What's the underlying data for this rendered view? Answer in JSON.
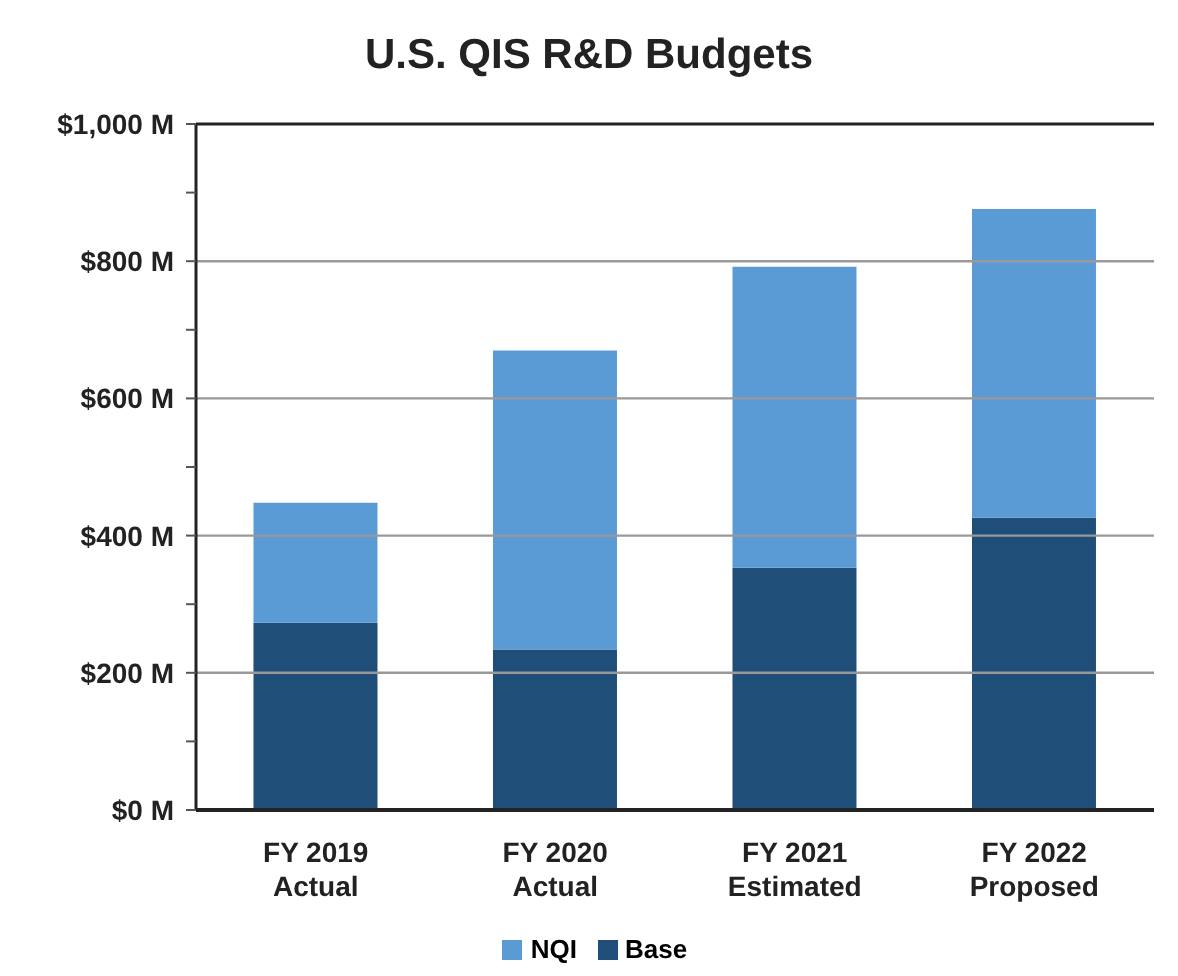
{
  "chart_data": {
    "type": "bar",
    "title": "U.S. QIS R&D Budgets",
    "categories": [
      "FY 2019\nActual",
      "FY 2020\nActual",
      "FY 2021\nEstimated",
      "FY 2022\nProposed"
    ],
    "stacked": true,
    "series": [
      {
        "name": "Base",
        "color": "#1f4e79",
        "values": [
          273,
          234,
          353,
          426
        ]
      },
      {
        "name": "NQI",
        "color": "#5b9bd5",
        "values": [
          175,
          436,
          439,
          450
        ]
      }
    ],
    "ylim": [
      0,
      1000
    ],
    "yticks": [
      {
        "value": 0,
        "label": "$0 M"
      },
      {
        "value": 100,
        "label": null
      },
      {
        "value": 200,
        "label": "$200 M"
      },
      {
        "value": 300,
        "label": null
      },
      {
        "value": 400,
        "label": "$400 M"
      },
      {
        "value": 500,
        "label": null
      },
      {
        "value": 600,
        "label": "$600 M"
      },
      {
        "value": 700,
        "label": null
      },
      {
        "value": 800,
        "label": "$800 M"
      },
      {
        "value": 900,
        "label": null
      },
      {
        "value": 1000,
        "label": "$1,000 M"
      }
    ],
    "grid": "y",
    "legend": "bottom"
  }
}
